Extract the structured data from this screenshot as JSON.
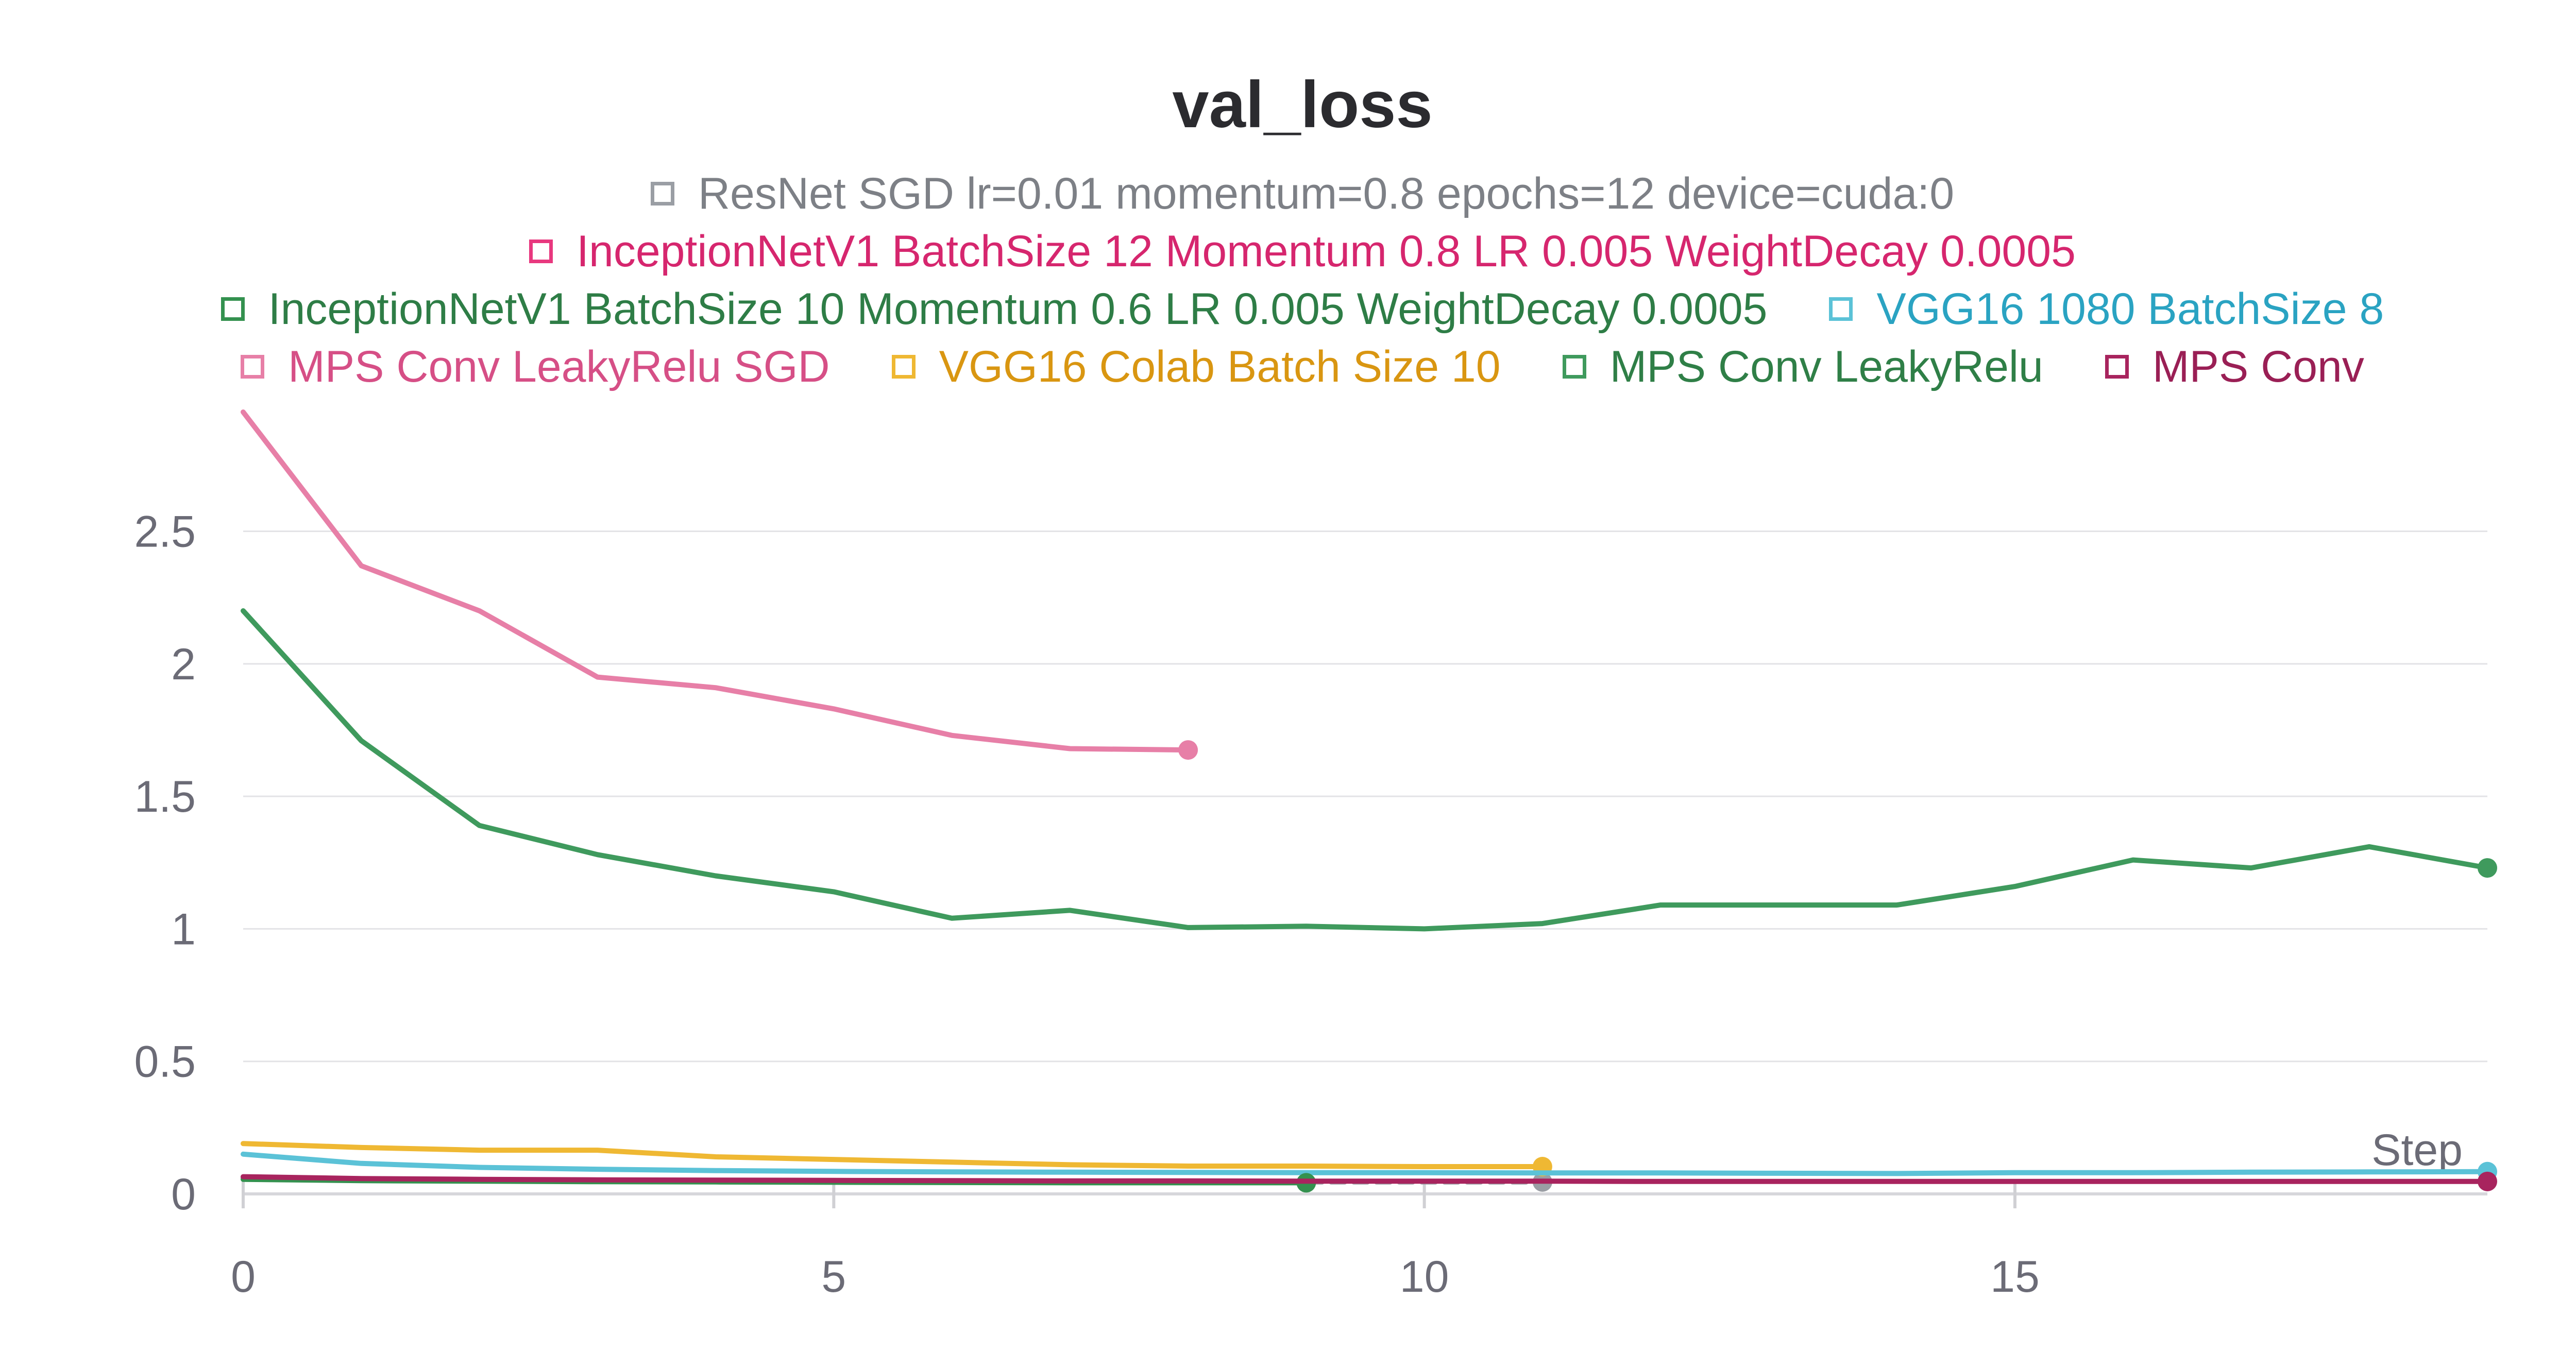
{
  "chart_data": {
    "type": "line",
    "title": "val_loss",
    "xlabel": "Step",
    "ylabel": "",
    "xlim": [
      0,
      19
    ],
    "ylim": [
      0,
      2.95
    ],
    "xticks": [
      0,
      5,
      10,
      15
    ],
    "yticks": [
      0,
      0.5,
      1,
      1.5,
      2,
      2.5
    ],
    "ytick_labels": [
      "0",
      "0.5",
      "1",
      "1.5",
      "2",
      "2.5"
    ],
    "xtick_labels": [
      "0",
      "5",
      "10",
      "15"
    ],
    "grid": true,
    "legend_position": "top-center",
    "legend_rows": [
      [
        0
      ],
      [
        1
      ],
      [
        2,
        3
      ],
      [
        4,
        5,
        6,
        7
      ]
    ],
    "series": [
      {
        "name": "ResNet SGD lr=0.01 momentum=0.8 epochs=12 device=cuda:0",
        "color": "#9a9ea4",
        "text_color": "#7d8086",
        "dashed": true,
        "x": [
          0,
          1,
          2,
          3,
          4,
          5,
          6,
          7,
          8,
          9,
          10,
          11
        ],
        "y": [
          0.06,
          0.055,
          0.05,
          0.05,
          0.048,
          0.047,
          0.046,
          0.045,
          0.045,
          0.045,
          0.045,
          0.045
        ]
      },
      {
        "name": "InceptionNetV1 BatchSize 12 Momentum 0.8 LR 0.005 WeightDecay 0.0005",
        "color": "#e8387f",
        "text_color": "#d6266e",
        "dashed": false,
        "x": [],
        "y": []
      },
      {
        "name": "InceptionNetV1 BatchSize 10 Momentum 0.6 LR 0.005 WeightDecay 0.0005",
        "color": "#34914f",
        "text_color": "#2e7d46",
        "dashed": false,
        "x": [
          0,
          1,
          2,
          3,
          4,
          5,
          6,
          7,
          8,
          9
        ],
        "y": [
          0.055,
          0.05,
          0.048,
          0.046,
          0.045,
          0.044,
          0.043,
          0.042,
          0.042,
          0.042
        ]
      },
      {
        "name": "VGG16 1080 BatchSize 8",
        "color": "#5bc2d7",
        "text_color": "#2aa3c2",
        "dashed": false,
        "x": [
          0,
          1,
          2,
          3,
          4,
          5,
          6,
          7,
          8,
          9,
          10,
          11,
          12,
          13,
          14,
          15,
          16,
          17,
          18,
          19
        ],
        "y": [
          0.15,
          0.115,
          0.1,
          0.093,
          0.088,
          0.085,
          0.083,
          0.082,
          0.081,
          0.08,
          0.08,
          0.079,
          0.079,
          0.078,
          0.077,
          0.08,
          0.08,
          0.082,
          0.083,
          0.084
        ]
      },
      {
        "name": "MPS Conv LeakyRelu SGD",
        "color": "#e77fa7",
        "text_color": "#d64f86",
        "dashed": false,
        "x": [
          0,
          1,
          2,
          3,
          4,
          5,
          6,
          7,
          8
        ],
        "y": [
          2.95,
          2.37,
          2.2,
          1.95,
          1.91,
          1.83,
          1.73,
          1.68,
          1.675
        ]
      },
      {
        "name": "VGG16 Colab Batch Size 10",
        "color": "#efb833",
        "text_color": "#d99611",
        "dashed": false,
        "x": [
          0,
          1,
          2,
          3,
          4,
          5,
          6,
          7,
          8,
          9,
          10,
          11
        ],
        "y": [
          0.19,
          0.175,
          0.165,
          0.165,
          0.14,
          0.13,
          0.12,
          0.11,
          0.105,
          0.105,
          0.103,
          0.103
        ]
      },
      {
        "name": "MPS Conv LeakyRelu",
        "color": "#3f9a5d",
        "text_color": "#2f7f47",
        "dashed": false,
        "x": [
          0,
          1,
          2,
          3,
          4,
          5,
          6,
          7,
          8,
          9,
          10,
          11,
          12,
          13,
          14,
          15,
          16,
          17,
          18,
          19
        ],
        "y": [
          2.2,
          1.71,
          1.39,
          1.28,
          1.2,
          1.14,
          1.04,
          1.07,
          1.005,
          1.01,
          1.0,
          1.02,
          1.09,
          1.09,
          1.09,
          1.16,
          1.26,
          1.23,
          1.31,
          1.23
        ]
      },
      {
        "name": "MPS Conv",
        "color": "#a8245e",
        "text_color": "#9a1f55",
        "dashed": false,
        "x": [
          0,
          1,
          2,
          3,
          4,
          5,
          6,
          7,
          8,
          9,
          10,
          11,
          12,
          13,
          14,
          15,
          16,
          17,
          18,
          19
        ],
        "y": [
          0.065,
          0.058,
          0.055,
          0.053,
          0.052,
          0.051,
          0.05,
          0.049,
          0.049,
          0.048,
          0.048,
          0.048,
          0.047,
          0.047,
          0.047,
          0.047,
          0.047,
          0.047,
          0.047,
          0.047
        ]
      }
    ]
  }
}
